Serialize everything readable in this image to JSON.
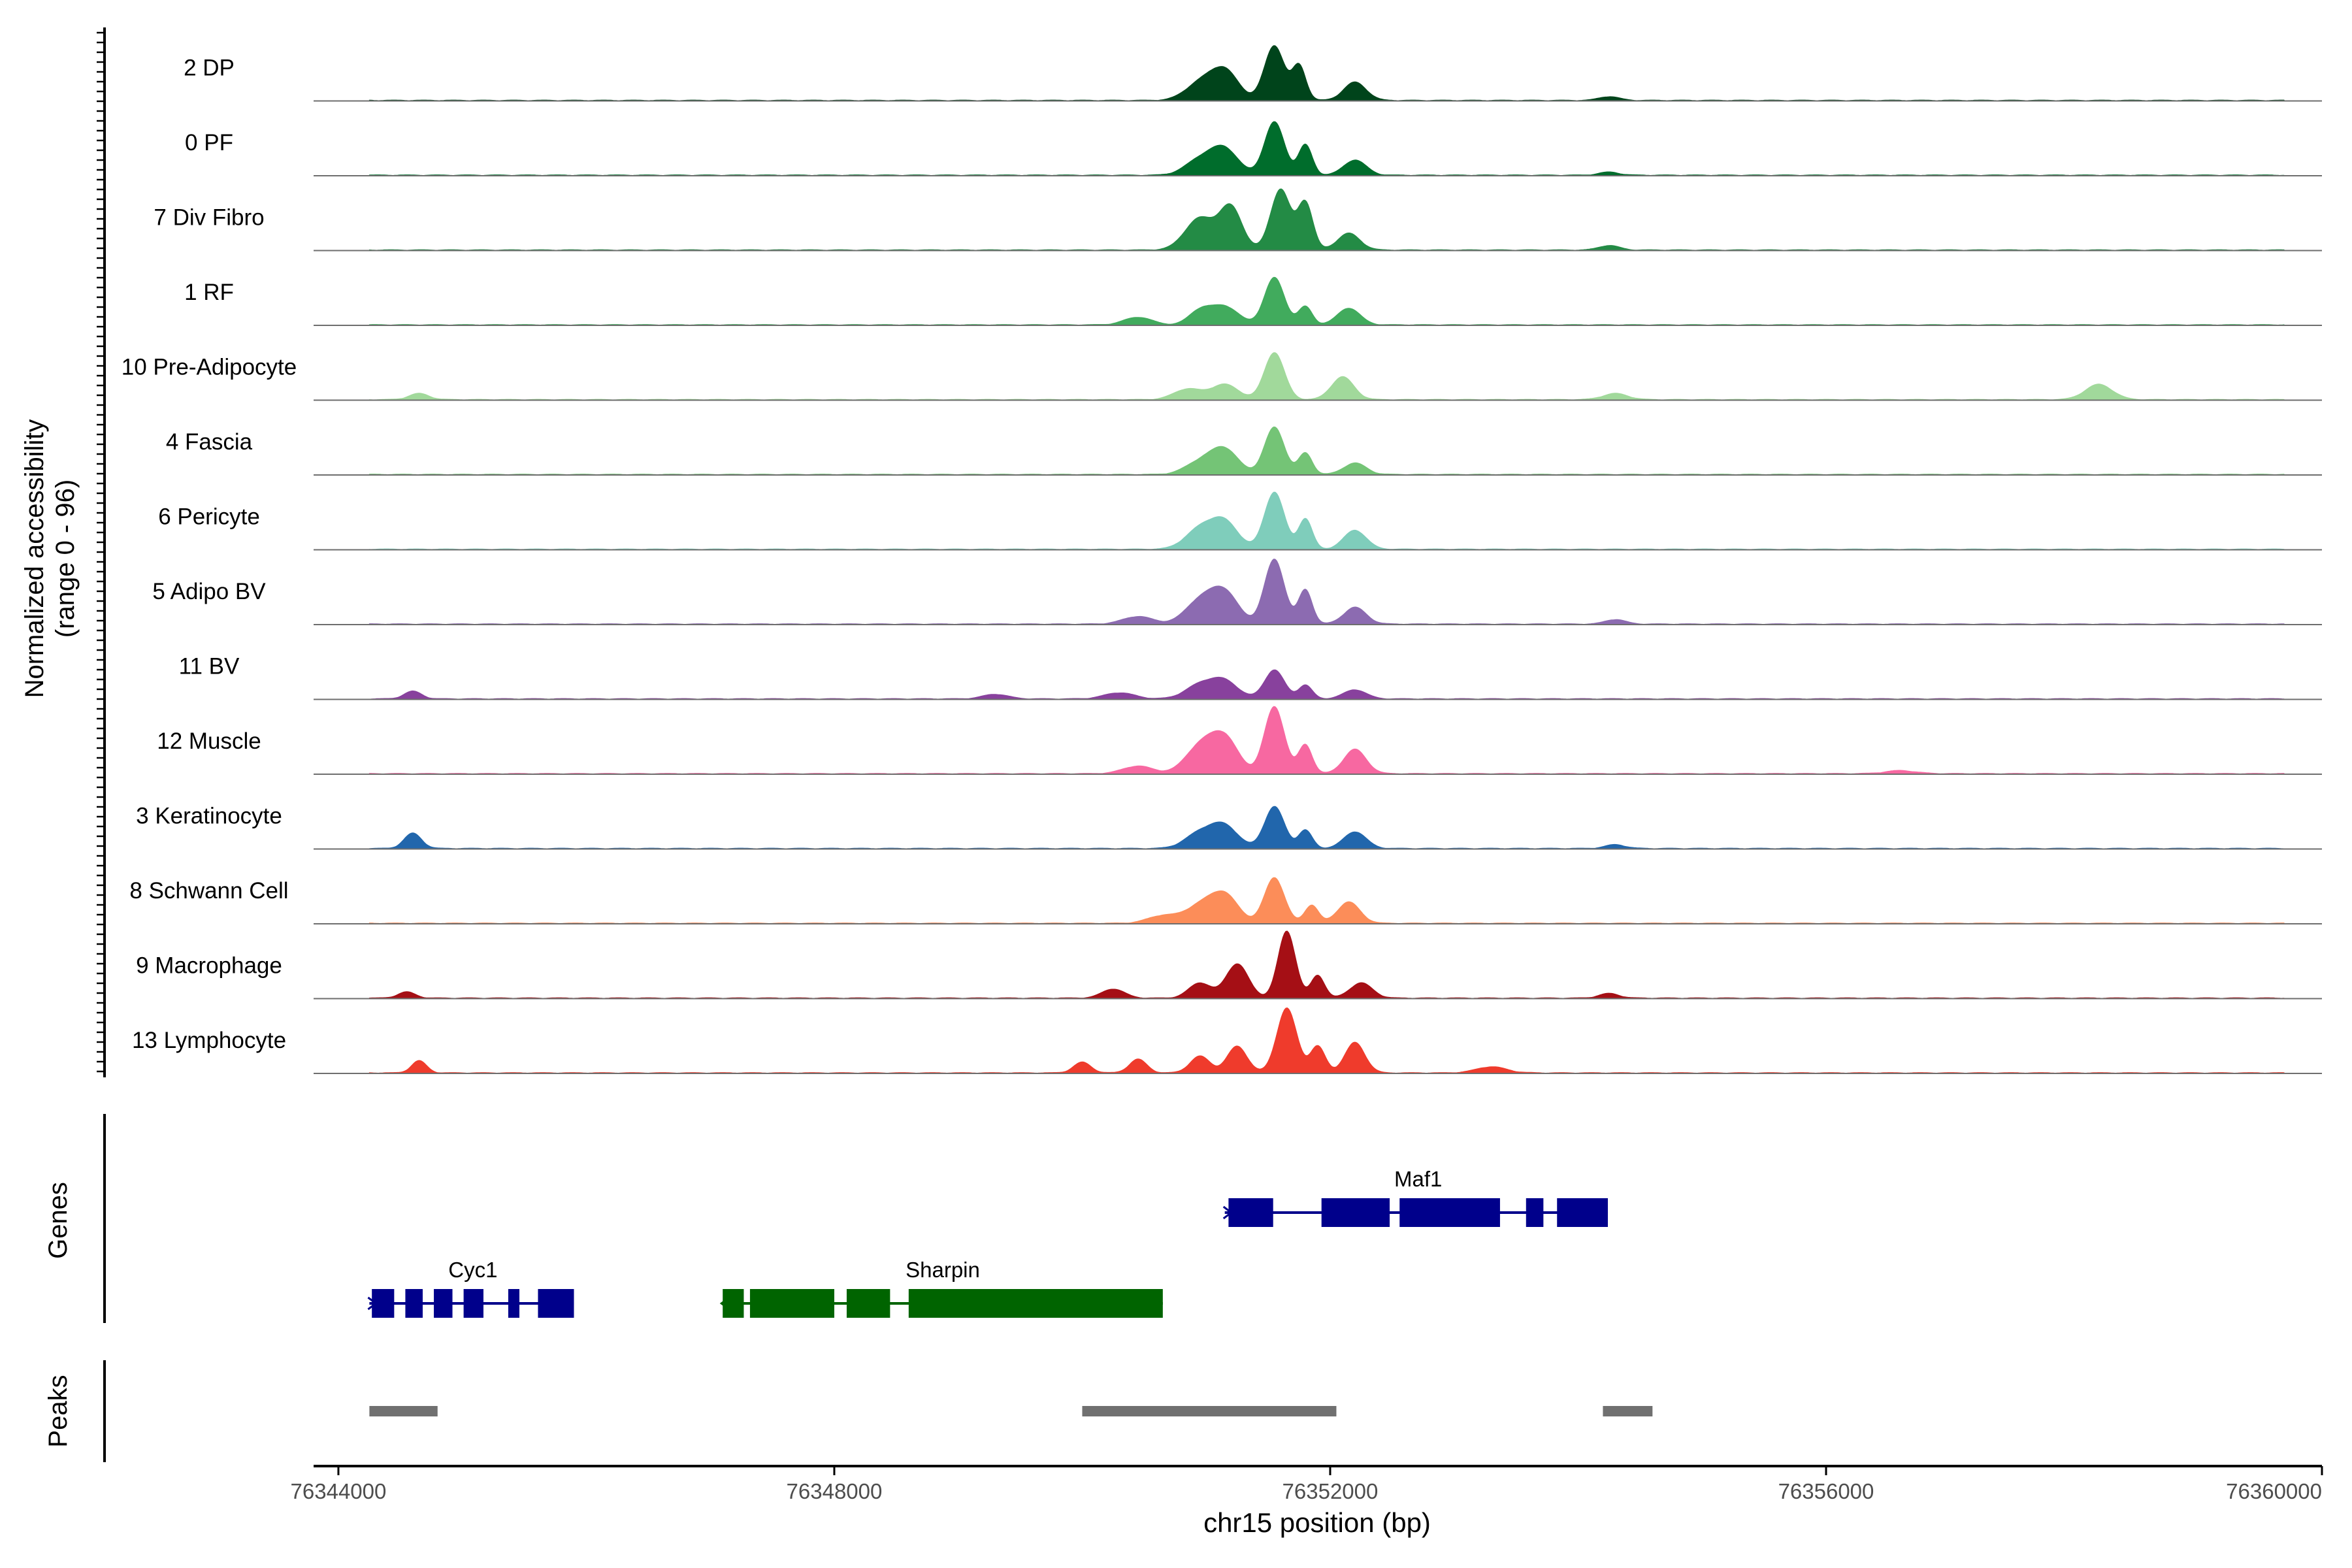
{
  "chart_data": {
    "type": "area",
    "chromosome": "chr15",
    "xlabel": "chr15 position (bp)",
    "ylabel_line1": "Normalized accessibility",
    "ylabel_line2": "(range 0 - 96)",
    "y_range": [
      0,
      96
    ],
    "xlim": [
      76343800,
      76360000
    ],
    "x_ticks": [
      76344000,
      76348000,
      76352000,
      76356000,
      76360000
    ],
    "x_tick_labels": [
      "76344000",
      "76348000",
      "76352000",
      "76356000",
      "76360000"
    ],
    "track_panel_labels": {
      "genes": "Genes",
      "peaks": "Peaks"
    },
    "series": [
      {
        "name": "2 DP",
        "color": "#00441b",
        "peaks": [
          [
            76350950,
            120,
            22
          ],
          [
            76351150,
            110,
            38
          ],
          [
            76351550,
            80,
            72
          ],
          [
            76351750,
            55,
            45
          ],
          [
            76352200,
            90,
            24
          ],
          [
            76354250,
            80,
            5
          ]
        ]
      },
      {
        "name": "0 PF",
        "color": "#006d2c",
        "peaks": [
          [
            76350950,
            120,
            20
          ],
          [
            76351150,
            110,
            33
          ],
          [
            76351550,
            80,
            70
          ],
          [
            76351800,
            55,
            40
          ],
          [
            76352200,
            90,
            20
          ],
          [
            76354250,
            80,
            4
          ]
        ]
      },
      {
        "name": "7 Div Fibro",
        "color": "#238b45",
        "peaks": [
          [
            76350950,
            120,
            42
          ],
          [
            76351200,
            90,
            55
          ],
          [
            76351600,
            80,
            80
          ],
          [
            76351800,
            60,
            62
          ],
          [
            76352150,
            90,
            22
          ],
          [
            76354250,
            80,
            6
          ]
        ]
      },
      {
        "name": "1 RF",
        "color": "#41ab5d",
        "peaks": [
          [
            76350450,
            110,
            10
          ],
          [
            76350950,
            90,
            18
          ],
          [
            76351150,
            110,
            24
          ],
          [
            76351550,
            80,
            62
          ],
          [
            76351800,
            55,
            24
          ],
          [
            76352150,
            90,
            22
          ]
        ]
      },
      {
        "name": "10 Pre-Adipocyte",
        "color": "#a1d99b",
        "peaks": [
          [
            76344650,
            80,
            8
          ],
          [
            76350850,
            110,
            14
          ],
          [
            76351150,
            110,
            20
          ],
          [
            76351550,
            80,
            62
          ],
          [
            76352100,
            90,
            30
          ],
          [
            76354300,
            100,
            8
          ],
          [
            76358200,
            110,
            20
          ]
        ]
      },
      {
        "name": "4 Fascia",
        "color": "#74c476",
        "peaks": [
          [
            76350950,
            120,
            16
          ],
          [
            76351150,
            110,
            32
          ],
          [
            76351550,
            80,
            62
          ],
          [
            76351800,
            55,
            28
          ],
          [
            76352200,
            90,
            15
          ]
        ]
      },
      {
        "name": "6 Pericyte",
        "color": "#7fcdbb",
        "peaks": [
          [
            76350950,
            120,
            26
          ],
          [
            76351150,
            110,
            34
          ],
          [
            76351550,
            80,
            75
          ],
          [
            76351800,
            55,
            40
          ],
          [
            76352200,
            90,
            25
          ]
        ]
      },
      {
        "name": "5 Adipo BV",
        "color": "#8c6bb1",
        "peaks": [
          [
            76350450,
            120,
            10
          ],
          [
            76350950,
            120,
            30
          ],
          [
            76351150,
            110,
            40
          ],
          [
            76351550,
            80,
            85
          ],
          [
            76351800,
            55,
            45
          ],
          [
            76352200,
            90,
            22
          ],
          [
            76354300,
            80,
            6
          ]
        ]
      },
      {
        "name": "11 BV",
        "color": "#88419d",
        "peaks": [
          [
            76344600,
            70,
            10
          ],
          [
            76349300,
            100,
            6
          ],
          [
            76350300,
            120,
            8
          ],
          [
            76350950,
            120,
            18
          ],
          [
            76351150,
            110,
            22
          ],
          [
            76351550,
            80,
            38
          ],
          [
            76351800,
            55,
            18
          ],
          [
            76352200,
            90,
            12
          ]
        ]
      },
      {
        "name": "12 Muscle",
        "color": "#f768a1",
        "peaks": [
          [
            76350450,
            120,
            10
          ],
          [
            76350950,
            120,
            35
          ],
          [
            76351150,
            110,
            45
          ],
          [
            76351550,
            80,
            88
          ],
          [
            76351800,
            55,
            38
          ],
          [
            76352200,
            90,
            32
          ],
          [
            76356600,
            120,
            4
          ]
        ]
      },
      {
        "name": "3 Keratinocyte",
        "color": "#2166ac",
        "peaks": [
          [
            76344600,
            70,
            20
          ],
          [
            76350950,
            120,
            20
          ],
          [
            76351150,
            110,
            28
          ],
          [
            76351550,
            80,
            55
          ],
          [
            76351800,
            55,
            24
          ],
          [
            76352200,
            90,
            22
          ],
          [
            76354300,
            80,
            5
          ]
        ]
      },
      {
        "name": "8 Schwann Cell",
        "color": "#fc8d59",
        "peaks": [
          [
            76350650,
            120,
            10
          ],
          [
            76350950,
            120,
            22
          ],
          [
            76351150,
            110,
            36
          ],
          [
            76351550,
            80,
            60
          ],
          [
            76351850,
            55,
            24
          ],
          [
            76352150,
            90,
            28
          ]
        ]
      },
      {
        "name": "9 Macrophage",
        "color": "#a50f15",
        "peaks": [
          [
            76344550,
            70,
            8
          ],
          [
            76350250,
            90,
            12
          ],
          [
            76350950,
            90,
            20
          ],
          [
            76351250,
            90,
            45
          ],
          [
            76351650,
            70,
            88
          ],
          [
            76351900,
            55,
            30
          ],
          [
            76352250,
            90,
            20
          ],
          [
            76354250,
            80,
            6
          ]
        ]
      },
      {
        "name": "13 Lymphocyte",
        "color": "#ef3b2c",
        "peaks": [
          [
            76344650,
            60,
            16
          ],
          [
            76350000,
            70,
            14
          ],
          [
            76350450,
            70,
            18
          ],
          [
            76350950,
            80,
            22
          ],
          [
            76351250,
            80,
            35
          ],
          [
            76351650,
            80,
            85
          ],
          [
            76351900,
            60,
            35
          ],
          [
            76352200,
            80,
            40
          ],
          [
            76353300,
            120,
            8
          ]
        ]
      }
    ],
    "genes": [
      {
        "name": "Sharpin",
        "color": "#006400",
        "strand": "-",
        "row": "lower",
        "start": 76347100,
        "end": 76350650,
        "exons": [
          [
            76347100,
            76347270
          ],
          [
            76347320,
            76348000
          ],
          [
            76348100,
            76348450
          ],
          [
            76348600,
            76350650
          ]
        ]
      },
      {
        "name": "Cyc1",
        "color": "#00008b",
        "strand": "+",
        "row": "lower",
        "start": 76344250,
        "end": 76345900,
        "exons": [
          [
            76344270,
            76344450
          ],
          [
            76344540,
            76344680
          ],
          [
            76344770,
            76344920
          ],
          [
            76345010,
            76345170
          ],
          [
            76345370,
            76345460
          ],
          [
            76345610,
            76345900
          ]
        ]
      },
      {
        "name": "Maf1",
        "color": "#00008b",
        "strand": "+",
        "row": "upper",
        "start": 76351150,
        "end": 76354240,
        "exons": [
          [
            76351180,
            76351540
          ],
          [
            76351930,
            76352480
          ],
          [
            76352560,
            76353370
          ],
          [
            76353580,
            76353720
          ],
          [
            76353830,
            76354240
          ]
        ]
      }
    ],
    "peaks": [
      [
        76344250,
        76344800
      ],
      [
        76350000,
        76352050
      ],
      [
        76354200,
        76354600
      ]
    ]
  }
}
